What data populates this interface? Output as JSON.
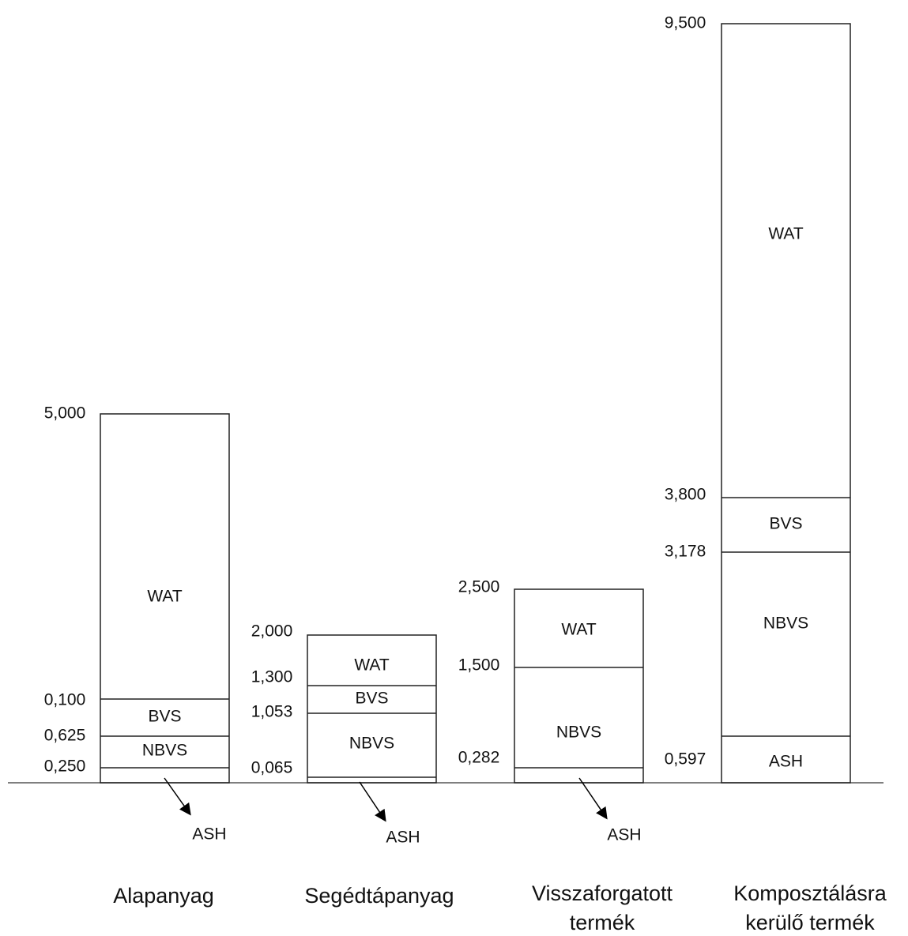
{
  "columns": [
    {
      "name": [
        "Alapanyag"
      ],
      "boundary_labels": [
        "5,000",
        "0,100",
        "0,625",
        "0,250"
      ],
      "segment_labels": [
        "WAT",
        "BVS",
        "NBVS"
      ],
      "ash_label": "ASH"
    },
    {
      "name": [
        "Segédtápanyag"
      ],
      "boundary_labels": [
        "2,000",
        "1,300",
        "1,053",
        "0,065"
      ],
      "segment_labels": [
        "WAT",
        "BVS",
        "NBVS"
      ],
      "ash_label": "ASH"
    },
    {
      "name": [
        "Visszaforgatott",
        "termék"
      ],
      "boundary_labels": [
        "2,500",
        "1,500",
        "0,282"
      ],
      "segment_labels": [
        "WAT",
        "NBVS"
      ],
      "ash_label": "ASH"
    },
    {
      "name": [
        "Komposztálásra",
        "kerülő termék"
      ],
      "boundary_labels": [
        "9,500",
        "3,800",
        "3,178",
        "0,597"
      ],
      "segment_labels": [
        "WAT",
        "BVS",
        "NBVS",
        "ASH"
      ]
    }
  ]
}
